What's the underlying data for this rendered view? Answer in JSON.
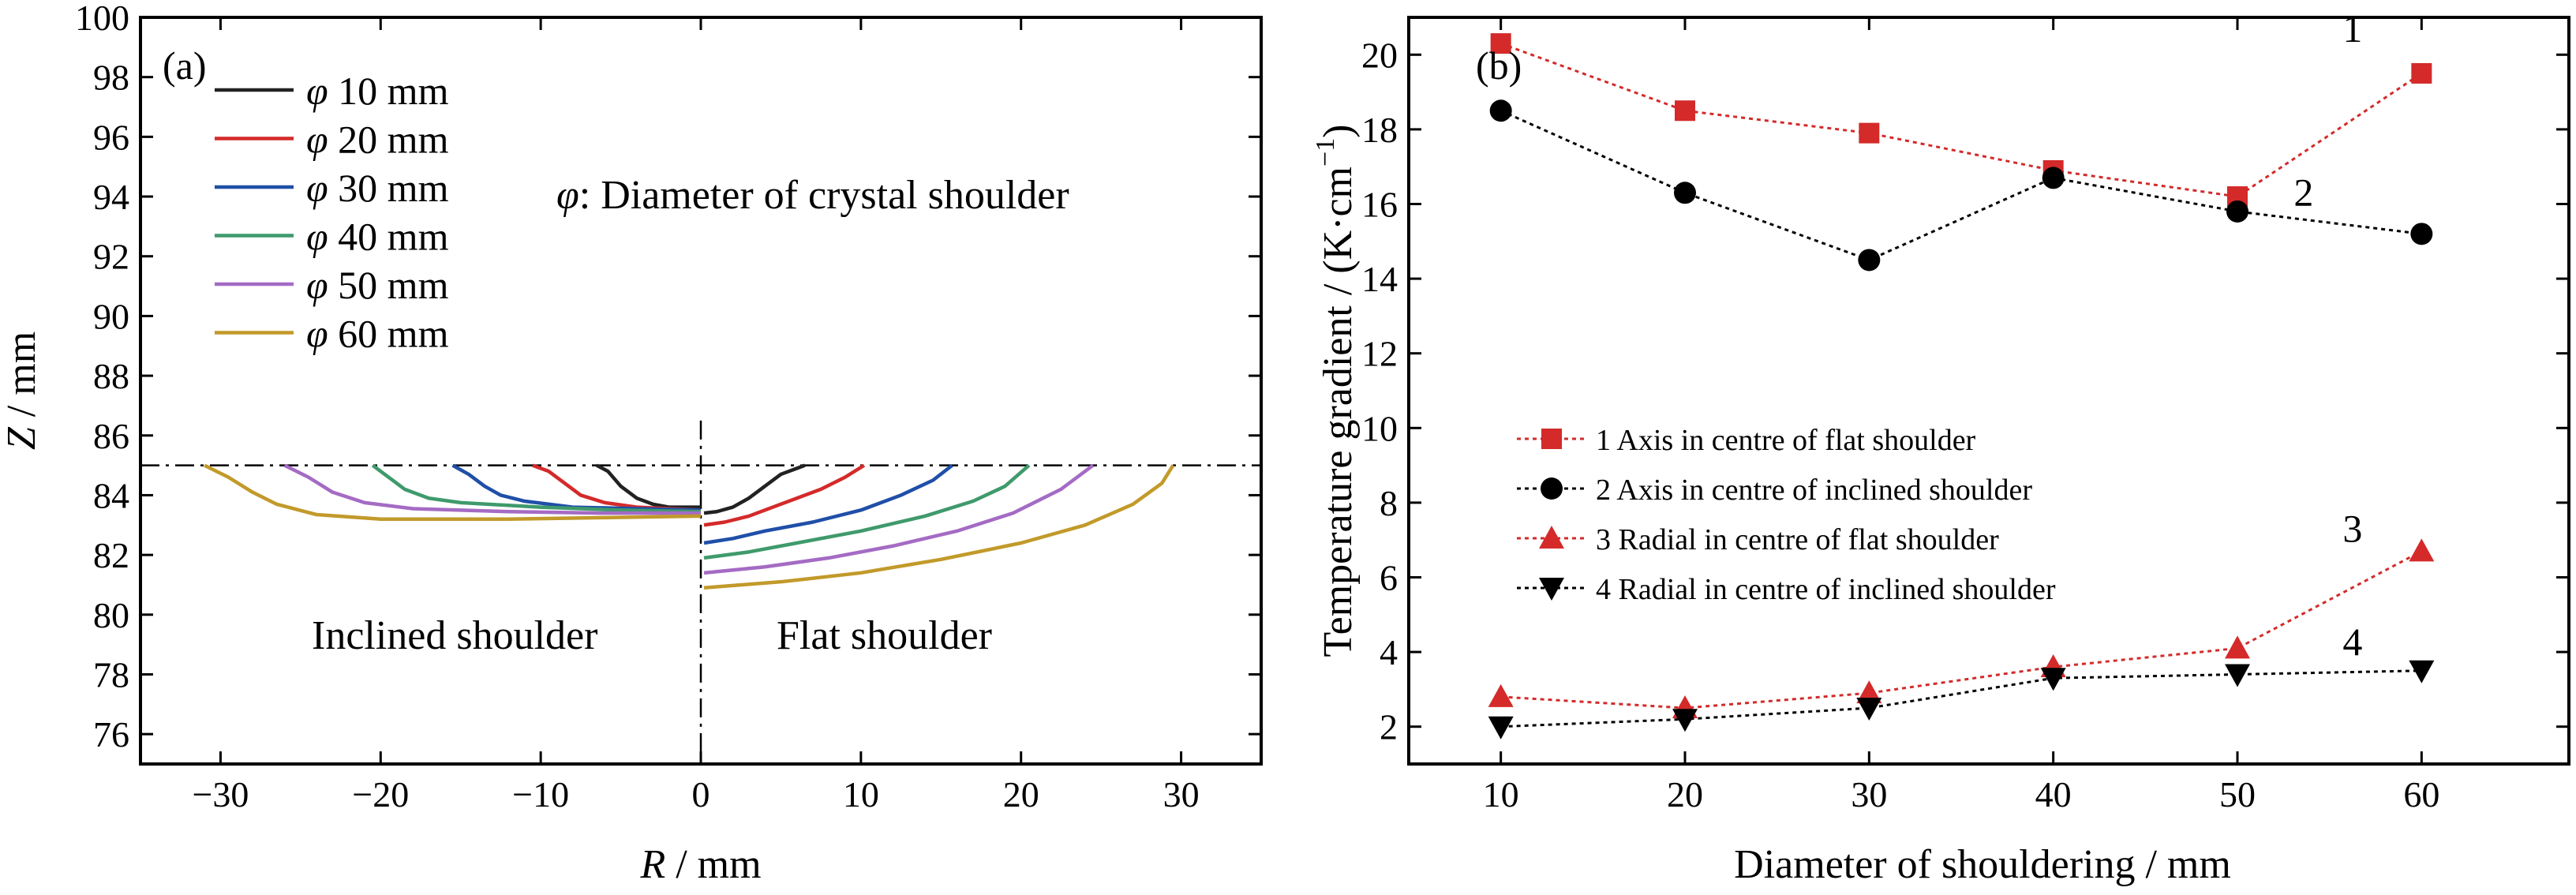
{
  "chart_data": [
    {
      "type": "line",
      "panel_label": "(a)",
      "xlabel_var": "R",
      "xlabel_unit": " / mm",
      "ylabel_var": "Z",
      "ylabel_unit": " / mm",
      "xlim": [
        -35,
        35
      ],
      "ylim": [
        75,
        100
      ],
      "xticks": [
        -30,
        -20,
        -10,
        0,
        10,
        20,
        30
      ],
      "yticks": [
        76,
        78,
        80,
        82,
        84,
        86,
        88,
        90,
        92,
        94,
        96,
        98,
        100
      ],
      "legend_symbol": "φ",
      "legend_position": "top-left",
      "annotations": {
        "phi_note": ": Diameter of crystal shoulder",
        "left_region": "Inclined shoulder",
        "right_region": "Flat shoulder"
      },
      "reference_lines": {
        "horizontal_z": 85,
        "vertical_r": 0
      },
      "series": [
        {
          "name": " 10 mm",
          "color": "#222222",
          "left": [
            [
              -6.5,
              85
            ],
            [
              -5.8,
              84.8
            ],
            [
              -5,
              84.3
            ],
            [
              -4,
              83.9
            ],
            [
              -3,
              83.7
            ],
            [
              -2,
              83.6
            ],
            [
              -1,
              83.6
            ],
            [
              0,
              83.6
            ]
          ],
          "right": [
            [
              0.2,
              83.4
            ],
            [
              1,
              83.45
            ],
            [
              2,
              83.6
            ],
            [
              3,
              83.9
            ],
            [
              4,
              84.3
            ],
            [
              5,
              84.7
            ],
            [
              6.5,
              85
            ]
          ]
        },
        {
          "name": " 20 mm",
          "color": "#d42a2a",
          "left": [
            [
              -10.5,
              85
            ],
            [
              -9.5,
              84.8
            ],
            [
              -8.5,
              84.4
            ],
            [
              -7.5,
              84.0
            ],
            [
              -6,
              83.75
            ],
            [
              -4,
              83.6
            ],
            [
              -2,
              83.55
            ],
            [
              0,
              83.5
            ]
          ],
          "right": [
            [
              0.2,
              83.0
            ],
            [
              1.5,
              83.1
            ],
            [
              3,
              83.3
            ],
            [
              4.5,
              83.6
            ],
            [
              6,
              83.9
            ],
            [
              7.5,
              84.2
            ],
            [
              9,
              84.6
            ],
            [
              10.2,
              85
            ]
          ]
        },
        {
          "name": " 30 mm",
          "color": "#1f4fa8",
          "left": [
            [
              -15.5,
              85
            ],
            [
              -14.5,
              84.7
            ],
            [
              -13.5,
              84.3
            ],
            [
              -12.5,
              84.0
            ],
            [
              -11,
              83.8
            ],
            [
              -8,
              83.6
            ],
            [
              -4,
              83.55
            ],
            [
              0,
              83.5
            ]
          ],
          "right": [
            [
              0.2,
              82.4
            ],
            [
              2,
              82.55
            ],
            [
              4,
              82.8
            ],
            [
              7,
              83.1
            ],
            [
              10,
              83.5
            ],
            [
              12.5,
              84.0
            ],
            [
              14.5,
              84.5
            ],
            [
              15.7,
              85
            ]
          ]
        },
        {
          "name": " 40 mm",
          "color": "#3f9a6c",
          "left": [
            [
              -20.5,
              85
            ],
            [
              -19.5,
              84.6
            ],
            [
              -18.5,
              84.2
            ],
            [
              -17,
              83.9
            ],
            [
              -15,
              83.75
            ],
            [
              -10,
              83.6
            ],
            [
              -5,
              83.5
            ],
            [
              0,
              83.45
            ]
          ],
          "right": [
            [
              0.2,
              81.9
            ],
            [
              3,
              82.1
            ],
            [
              6,
              82.4
            ],
            [
              10,
              82.8
            ],
            [
              14,
              83.3
            ],
            [
              17,
              83.8
            ],
            [
              19,
              84.3
            ],
            [
              20.5,
              85
            ]
          ]
        },
        {
          "name": " 50 mm",
          "color": "#a46bc4",
          "left": [
            [
              -26,
              85
            ],
            [
              -24.5,
              84.6
            ],
            [
              -23,
              84.1
            ],
            [
              -21,
              83.75
            ],
            [
              -18,
              83.55
            ],
            [
              -12,
              83.45
            ],
            [
              -6,
              83.4
            ],
            [
              0,
              83.4
            ]
          ],
          "right": [
            [
              0.2,
              81.4
            ],
            [
              4,
              81.6
            ],
            [
              8,
              81.9
            ],
            [
              12,
              82.3
            ],
            [
              16,
              82.8
            ],
            [
              19.5,
              83.4
            ],
            [
              22.5,
              84.2
            ],
            [
              24.5,
              85
            ]
          ]
        },
        {
          "name": " 60 mm",
          "color": "#c29a2a",
          "left": [
            [
              -31,
              85
            ],
            [
              -29.5,
              84.6
            ],
            [
              -28,
              84.1
            ],
            [
              -26.5,
              83.7
            ],
            [
              -24,
              83.35
            ],
            [
              -20,
              83.2
            ],
            [
              -12,
              83.2
            ],
            [
              -6,
              83.25
            ],
            [
              0,
              83.3
            ]
          ],
          "right": [
            [
              0.2,
              80.9
            ],
            [
              5,
              81.1
            ],
            [
              10,
              81.4
            ],
            [
              15,
              81.85
            ],
            [
              20,
              82.4
            ],
            [
              24,
              83.0
            ],
            [
              27,
              83.7
            ],
            [
              28.8,
              84.4
            ],
            [
              29.5,
              85
            ]
          ]
        }
      ]
    },
    {
      "type": "line",
      "panel_label": "(b)",
      "xlabel": "Diameter of shouldering / mm",
      "ylabel_main": "Temperature gradient / (K·cm",
      "ylabel_sup": "−1",
      "ylabel_close": ")",
      "xlim": [
        5,
        68
      ],
      "ylim": [
        1,
        21
      ],
      "xticks": [
        10,
        20,
        30,
        40,
        50,
        60
      ],
      "yticks": [
        2,
        4,
        6,
        8,
        10,
        12,
        14,
        16,
        18,
        20
      ],
      "legend_position": "center-left",
      "x": [
        10,
        20,
        30,
        40,
        50,
        60
      ],
      "series": [
        {
          "name": "1  Axis in centre of flat shoulder",
          "label": "1",
          "color": "#d42a2a",
          "marker": "square",
          "values": [
            20.3,
            18.5,
            17.9,
            16.9,
            16.2,
            19.5
          ]
        },
        {
          "name": "2  Axis in centre of inclined shoulder",
          "label": "2",
          "color": "#000000",
          "marker": "circle",
          "values": [
            18.5,
            16.3,
            14.5,
            16.7,
            15.8,
            15.2
          ]
        },
        {
          "name": "3  Radial in centre of flat shoulder",
          "label": "3",
          "color": "#d42a2a",
          "marker": "triangle-up",
          "values": [
            2.8,
            2.5,
            2.9,
            3.6,
            4.1,
            6.7
          ]
        },
        {
          "name": "4  Radial in centre of inclined shoulder",
          "label": "4",
          "color": "#000000",
          "marker": "triangle-down",
          "values": [
            2.0,
            2.2,
            2.5,
            3.3,
            3.4,
            3.5
          ]
        }
      ]
    }
  ]
}
